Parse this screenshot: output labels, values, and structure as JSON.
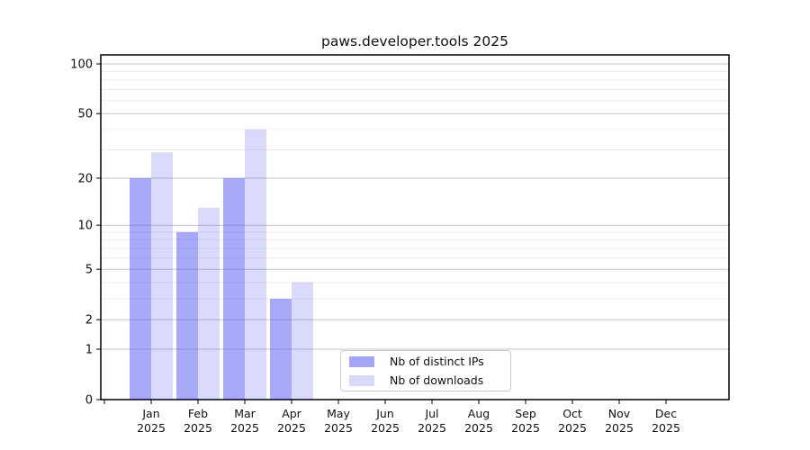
{
  "header": {
    "title": "paws.developer.tools 2025"
  },
  "chart_data": {
    "type": "bar",
    "title": "paws.developer.tools 2025",
    "year": "2025",
    "categories": [
      "Jan 2025",
      "Feb 2025",
      "Mar 2025",
      "Apr 2025",
      "May 2025",
      "Jun 2025",
      "Jul 2025",
      "Aug 2025",
      "Sep 2025",
      "Oct 2025",
      "Nov 2025",
      "Dec 2025"
    ],
    "series": [
      {
        "name": "Nb of distinct IPs",
        "color_hex": "#a6a6f6",
        "fill_rgba": "rgba(60,60,242,0.44)",
        "values": [
          20,
          9,
          20,
          3,
          0,
          0,
          0,
          0,
          0,
          0,
          0,
          0
        ]
      },
      {
        "name": "Nb of downloads",
        "color_hex": "#d9d9f9",
        "fill_rgba": "rgba(60,60,242,0.19)",
        "values": [
          29,
          13,
          40,
          4,
          0,
          0,
          0,
          0,
          0,
          0,
          0,
          0
        ]
      }
    ],
    "xlabel": "",
    "ylabel": "",
    "yscale": "log1p",
    "ylim": [
      0,
      100
    ],
    "yticks": [
      0,
      1,
      2,
      5,
      10,
      20,
      50,
      100
    ],
    "minor_yticks": [
      3,
      4,
      6,
      7,
      8,
      9,
      30,
      40,
      60,
      70,
      80,
      90
    ],
    "grid": true,
    "legend_position": "inside lower-center",
    "colors": {
      "major_grid": "#c6c6c6",
      "minor_grid": "#ececec",
      "axis": "#000000",
      "text": "#111111",
      "legend_border": "#cccccc",
      "background": "#ffffff"
    }
  }
}
